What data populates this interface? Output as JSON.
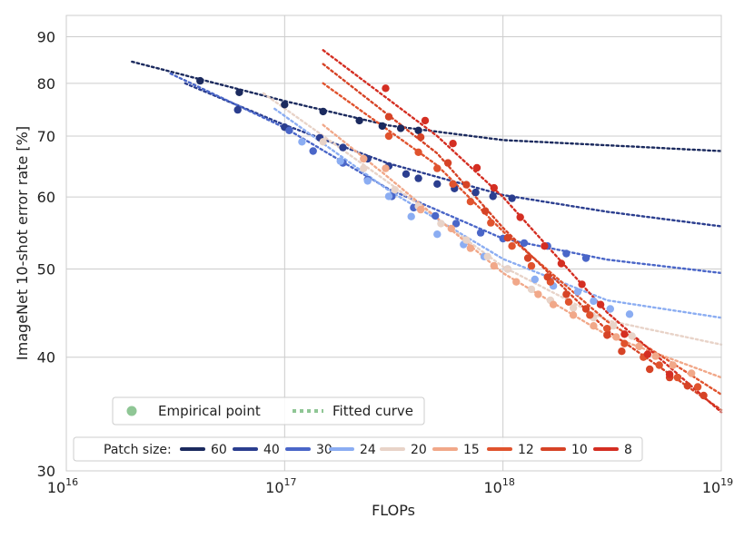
{
  "chart_data": {
    "type": "scatter",
    "xscale": "log",
    "yscale": "log",
    "xlabel": "FLOPs",
    "ylabel": "ImageNet 10-shot error rate [%]",
    "xlim": [
      1e+16,
      1e+19
    ],
    "ylim": [
      30,
      95
    ],
    "x_ticks": [
      {
        "value": 1e+16,
        "base": "10",
        "exp": "16"
      },
      {
        "value": 1e+17,
        "base": "10",
        "exp": "17"
      },
      {
        "value": 1e+18,
        "base": "10",
        "exp": "18"
      },
      {
        "value": 1e+19,
        "base": "10",
        "exp": "19"
      }
    ],
    "y_ticks": [
      {
        "value": 30,
        "label": "30"
      },
      {
        "value": 40,
        "label": "40"
      },
      {
        "value": 50,
        "label": "50"
      },
      {
        "value": 60,
        "label": "60"
      },
      {
        "value": 70,
        "label": "70"
      },
      {
        "value": 80,
        "label": "80"
      },
      {
        "value": 90,
        "label": "90"
      }
    ],
    "legend": {
      "empirical_label": "Empirical point",
      "fitted_label": "Fitted curve",
      "patch_title": "Patch size:",
      "marker_color": "#8fc695"
    },
    "series": [
      {
        "name": "60",
        "color": "#1b2a5e",
        "points": [
          [
            4.1e+16,
            80.5
          ],
          [
            6.2e+16,
            78.2
          ],
          [
            1e+17,
            75.8
          ],
          [
            1.5e+17,
            74.5
          ],
          [
            2.2e+17,
            72.8
          ],
          [
            2.8e+17,
            71.8
          ],
          [
            3.4e+17,
            71.4
          ],
          [
            4.1e+17,
            71.0
          ]
        ],
        "curve": [
          [
            2e+16,
            84.5
          ],
          [
            1e+17,
            76.5
          ],
          [
            3e+17,
            71.9
          ],
          [
            1e+18,
            69.3
          ],
          [
            1e+19,
            67.4
          ]
        ]
      },
      {
        "name": "40",
        "color": "#2b3e8f",
        "points": [
          [
            6.1e+16,
            74.8
          ],
          [
            1e+17,
            71.6
          ],
          [
            1.45e+17,
            69.7
          ],
          [
            1.85e+17,
            68.0
          ],
          [
            2.4e+17,
            66.1
          ],
          [
            3e+17,
            64.9
          ],
          [
            3.6e+17,
            63.6
          ],
          [
            4.1e+17,
            62.9
          ],
          [
            5e+17,
            62.0
          ],
          [
            6e+17,
            61.3
          ],
          [
            7.5e+17,
            60.7
          ],
          [
            9e+17,
            60.1
          ],
          [
            1.1e+18,
            59.8
          ]
        ],
        "curve": [
          [
            3.5e+16,
            80.0
          ],
          [
            1e+17,
            72.0
          ],
          [
            3e+17,
            65.3
          ],
          [
            1e+18,
            60.3
          ],
          [
            3e+18,
            57.8
          ],
          [
            1e+19,
            55.7
          ]
        ]
      },
      {
        "name": "30",
        "color": "#4a66c8",
        "points": [
          [
            1.05e+17,
            71.0
          ],
          [
            1.35e+17,
            67.4
          ],
          [
            1.85e+17,
            65.4
          ],
          [
            2.4e+17,
            62.7
          ],
          [
            3.1e+17,
            60.1
          ],
          [
            3.9e+17,
            58.4
          ],
          [
            4.9e+17,
            57.2
          ],
          [
            6.1e+17,
            56.1
          ],
          [
            7.9e+17,
            54.8
          ],
          [
            1e+18,
            54.0
          ],
          [
            1.25e+18,
            53.4
          ],
          [
            1.6e+18,
            53.0
          ],
          [
            1.95e+18,
            52.0
          ],
          [
            2.4e+18,
            51.4
          ]
        ],
        "curve": [
          [
            3e+16,
            82.0
          ],
          [
            1e+17,
            71.5
          ],
          [
            3e+17,
            61.2
          ],
          [
            1e+18,
            54.0
          ],
          [
            3e+18,
            51.2
          ],
          [
            1e+19,
            49.5
          ]
        ]
      },
      {
        "name": "24",
        "color": "#8badf2",
        "points": [
          [
            1.2e+17,
            69.0
          ],
          [
            1.8e+17,
            65.7
          ],
          [
            2.4e+17,
            62.5
          ],
          [
            3e+17,
            60.1
          ],
          [
            3.8e+17,
            57.1
          ],
          [
            5e+17,
            54.6
          ],
          [
            6.6e+17,
            53.2
          ],
          [
            8.2e+17,
            51.6
          ],
          [
            1.05e+18,
            50.0
          ],
          [
            1.4e+18,
            48.7
          ],
          [
            1.7e+18,
            47.9
          ],
          [
            2.2e+18,
            47.2
          ],
          [
            2.6e+18,
            46.1
          ],
          [
            3.1e+18,
            45.2
          ],
          [
            3.8e+18,
            44.6
          ]
        ],
        "curve": [
          [
            9e+16,
            75.0
          ],
          [
            3e+17,
            61.0
          ],
          [
            1e+18,
            51.3
          ],
          [
            3e+18,
            46.2
          ],
          [
            1e+19,
            44.2
          ]
        ]
      },
      {
        "name": "20",
        "color": "#e8d3c8",
        "points": [
          [
            1.5e+17,
            69.0
          ],
          [
            2.3e+17,
            64.5
          ],
          [
            3.2e+17,
            61.1
          ],
          [
            4.1e+17,
            58.6
          ],
          [
            5.2e+17,
            56.1
          ],
          [
            6.8e+17,
            53.8
          ],
          [
            8.5e+17,
            51.6
          ],
          [
            1.05e+18,
            50.0
          ],
          [
            1.35e+18,
            47.5
          ],
          [
            1.65e+18,
            46.2
          ],
          [
            2.1e+18,
            45.3
          ],
          [
            2.6e+18,
            44.2
          ],
          [
            3.2e+18,
            43.3
          ],
          [
            3.9e+18,
            42.2
          ]
        ],
        "curve": [
          [
            8e+16,
            78.0
          ],
          [
            3e+17,
            62.2
          ],
          [
            1e+18,
            50.3
          ],
          [
            3e+18,
            43.9
          ],
          [
            1e+19,
            41.3
          ]
        ]
      },
      {
        "name": "15",
        "color": "#f1a889",
        "points": [
          [
            2.3e+17,
            66.1
          ],
          [
            2.9e+17,
            64.5
          ],
          [
            4.2e+17,
            58.1
          ],
          [
            5.8e+17,
            55.4
          ],
          [
            7.1e+17,
            52.7
          ],
          [
            9.1e+17,
            50.4
          ],
          [
            1.15e+18,
            48.4
          ],
          [
            1.45e+18,
            46.9
          ],
          [
            1.7e+18,
            45.7
          ],
          [
            2.1e+18,
            44.5
          ],
          [
            2.6e+18,
            43.3
          ],
          [
            3.3e+18,
            42.1
          ],
          [
            4.2e+18,
            41.1
          ],
          [
            5e+18,
            40.1
          ],
          [
            6e+18,
            39.2
          ],
          [
            7.3e+18,
            38.4
          ]
        ],
        "curve": [
          [
            1.5e+17,
            72.0
          ],
          [
            3e+17,
            63.0
          ],
          [
            1e+18,
            49.5
          ],
          [
            3e+18,
            42.3
          ],
          [
            1e+19,
            38.0
          ]
        ]
      },
      {
        "name": "12",
        "color": "#e0532e",
        "points": [
          [
            3e+17,
            70.0
          ],
          [
            4.1e+17,
            67.2
          ],
          [
            5e+17,
            64.5
          ],
          [
            5.9e+17,
            62.0
          ],
          [
            7.1e+17,
            59.3
          ],
          [
            8.8e+17,
            56.2
          ],
          [
            1.1e+18,
            53.0
          ],
          [
            1.35e+18,
            50.4
          ],
          [
            1.65e+18,
            48.4
          ],
          [
            2e+18,
            46.0
          ],
          [
            2.5e+18,
            44.5
          ],
          [
            3e+18,
            43.0
          ],
          [
            3.6e+18,
            41.4
          ],
          [
            4.4e+18,
            40.0
          ],
          [
            5.2e+18,
            39.2
          ],
          [
            6.3e+18,
            38.0
          ],
          [
            7.8e+18,
            37.1
          ]
        ],
        "curve": [
          [
            1.5e+17,
            80.0
          ],
          [
            5e+17,
            65.0
          ],
          [
            1e+18,
            55.0
          ],
          [
            3e+18,
            43.8
          ],
          [
            1e+19,
            36.4
          ]
        ]
      },
      {
        "name": "10",
        "color": "#d64326",
        "points": [
          [
            3e+17,
            73.5
          ],
          [
            4.2e+17,
            69.8
          ],
          [
            5.6e+17,
            65.4
          ],
          [
            6.8e+17,
            61.9
          ],
          [
            8.3e+17,
            57.9
          ],
          [
            1.05e+18,
            54.1
          ],
          [
            1.3e+18,
            51.4
          ],
          [
            1.6e+18,
            49.0
          ],
          [
            1.95e+18,
            46.9
          ],
          [
            2.4e+18,
            45.2
          ],
          [
            3e+18,
            42.3
          ],
          [
            3.5e+18,
            40.6
          ],
          [
            4.7e+18,
            38.8
          ],
          [
            5.8e+18,
            38.0
          ],
          [
            7e+18,
            37.2
          ],
          [
            8.3e+18,
            36.3
          ]
        ],
        "curve": [
          [
            1.5e+17,
            84.0
          ],
          [
            5e+17,
            67.0
          ],
          [
            1e+18,
            55.5
          ],
          [
            3e+18,
            42.8
          ],
          [
            1e+19,
            35.0
          ]
        ]
      },
      {
        "name": "8",
        "color": "#d42e22",
        "points": [
          [
            2.9e+17,
            79.0
          ],
          [
            4.4e+17,
            72.8
          ],
          [
            5.9e+17,
            68.7
          ],
          [
            7.6e+17,
            64.6
          ],
          [
            9.1e+17,
            61.4
          ],
          [
            1.2e+18,
            57.0
          ],
          [
            1.55e+18,
            53.0
          ],
          [
            1.85e+18,
            50.7
          ],
          [
            2.3e+18,
            48.1
          ],
          [
            2.8e+18,
            45.7
          ],
          [
            3.6e+18,
            42.4
          ],
          [
            4.6e+18,
            40.3
          ],
          [
            5.8e+18,
            38.3
          ]
        ],
        "curve": [
          [
            1.5e+17,
            87.0
          ],
          [
            5e+17,
            70.0
          ],
          [
            1e+18,
            60.0
          ],
          [
            3e+18,
            44.8
          ],
          [
            1e+19,
            34.8
          ]
        ]
      }
    ]
  }
}
